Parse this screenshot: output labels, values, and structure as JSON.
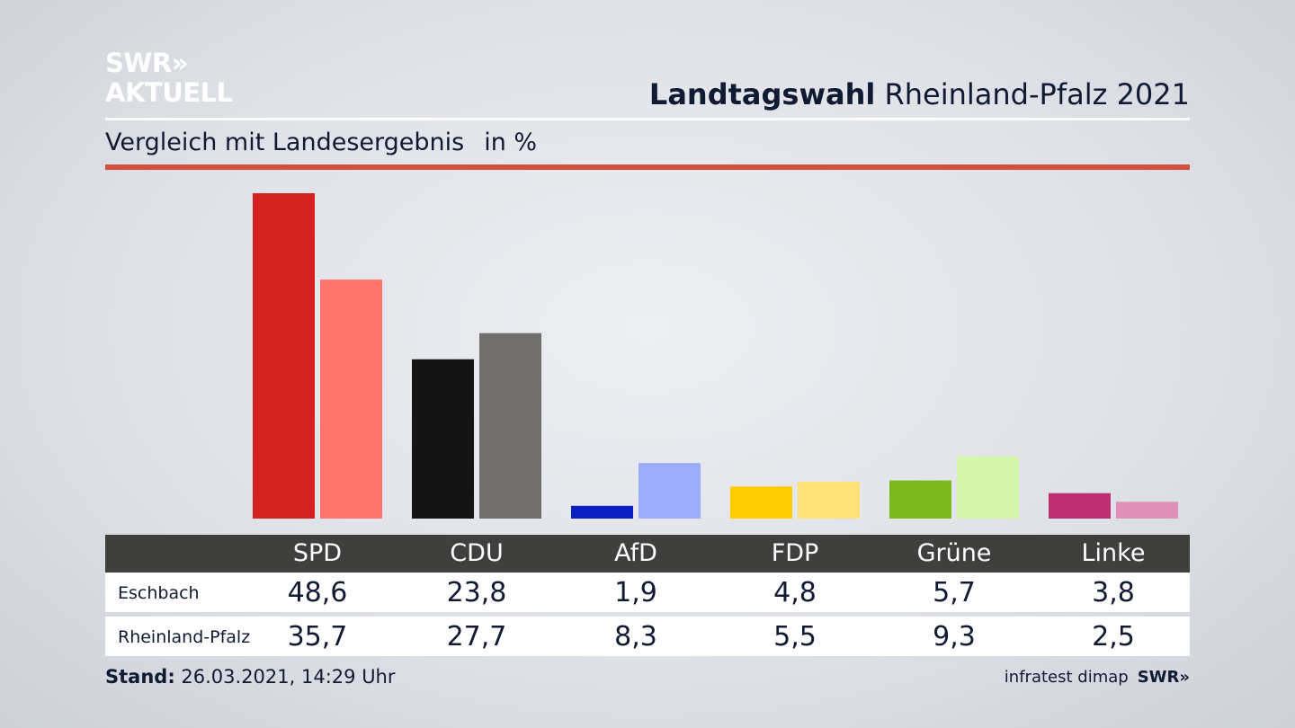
{
  "logo": {
    "line1": "SWR»",
    "line2": "AKTUELL"
  },
  "header": {
    "title_bold": "Landtagswahl",
    "title_rest": "Rheinland-Pfalz 2021",
    "subtitle": "Vergleich mit Landesergebnis",
    "unit": "in %"
  },
  "chart_data": {
    "type": "bar",
    "categories": [
      "SPD",
      "CDU",
      "AfD",
      "FDP",
      "Grüne",
      "Linke"
    ],
    "series": [
      {
        "name": "Eschbach",
        "values": [
          48.6,
          23.8,
          1.9,
          4.8,
          5.7,
          3.8
        ]
      },
      {
        "name": "Rheinland-Pfalz",
        "values": [
          35.7,
          27.7,
          8.3,
          5.5,
          9.3,
          2.5
        ]
      }
    ],
    "colors": {
      "Eschbach": [
        "#d52020",
        "#141414",
        "#0a1fbf",
        "#ffcc00",
        "#7bb91e",
        "#bb2f72"
      ],
      "Rheinland-Pfalz": [
        "#ff736d",
        "#716f6d",
        "#9dabff",
        "#ffe178",
        "#d6f6ae",
        "#e08fb7"
      ]
    },
    "ylim": [
      0,
      48.6
    ],
    "grid": false
  },
  "table": {
    "headers": [
      "SPD",
      "CDU",
      "AfD",
      "FDP",
      "Grüne",
      "Linke"
    ],
    "rows": [
      {
        "label": "Eschbach",
        "values": [
          "48,6",
          "23,8",
          "1,9",
          "4,8",
          "5,7",
          "3,8"
        ]
      },
      {
        "label": "Rheinland-Pfalz",
        "values": [
          "35,7",
          "27,7",
          "8,3",
          "5,5",
          "9,3",
          "2,5"
        ]
      }
    ]
  },
  "footer": {
    "stand_label": "Stand:",
    "stand_value": "26.03.2021, 14:29 Uhr",
    "source": "infratest dimap",
    "brand": "SWR»"
  }
}
